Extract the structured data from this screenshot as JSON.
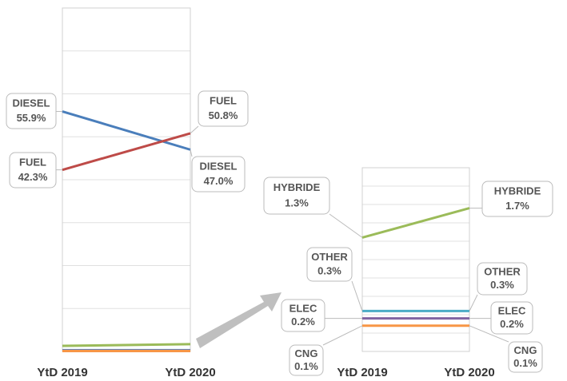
{
  "chart_data": [
    {
      "type": "line",
      "categories": [
        "YtD 2019",
        "YtD 2020"
      ],
      "ylim": [
        0,
        80
      ],
      "yticks": [
        0,
        10,
        20,
        30,
        40,
        50,
        60,
        70,
        80
      ],
      "grid": true,
      "series": [
        {
          "name": "DIESEL",
          "color": "#4a7ebb",
          "values": [
            55.9,
            47.0
          ],
          "value_labels": [
            "55.9%",
            "47.0%"
          ]
        },
        {
          "name": "FUEL",
          "color": "#be4b48",
          "values": [
            42.3,
            50.8
          ],
          "value_labels": [
            "42.3%",
            "50.8%"
          ]
        },
        {
          "color": "#9bbb59",
          "values": [
            1.3,
            1.7
          ]
        },
        {
          "color": "#4bacc6",
          "values": [
            0.3,
            0.3
          ]
        },
        {
          "color": "#8064a2",
          "values": [
            0.2,
            0.2
          ]
        },
        {
          "color": "#f79646",
          "values": [
            0.1,
            0.1
          ]
        }
      ]
    },
    {
      "type": "line",
      "categories": [
        "YtD 2019",
        "YtD 2020"
      ],
      "ylim": [
        -0.25,
        2.25
      ],
      "yticks": [
        -0.25,
        0,
        0.25,
        0.5,
        0.75,
        1,
        1.25,
        1.5,
        1.75,
        2,
        2.25
      ],
      "grid": true,
      "series": [
        {
          "name": "HYBRIDE",
          "color": "#9bbb59",
          "values": [
            1.3,
            1.7
          ],
          "value_labels": [
            "1.3%",
            "1.7%"
          ]
        },
        {
          "name": "OTHER",
          "color": "#4bacc6",
          "values": [
            0.3,
            0.3
          ],
          "value_labels": [
            "0.3%",
            "0.3%"
          ]
        },
        {
          "name": "ELEC",
          "color": "#8064a2",
          "values": [
            0.2,
            0.2
          ],
          "value_labels": [
            "0.2%",
            "0.2%"
          ]
        },
        {
          "name": "CNG",
          "color": "#f79646",
          "values": [
            0.1,
            0.1
          ],
          "value_labels": [
            "0.1%",
            "0.1%"
          ]
        }
      ]
    }
  ]
}
